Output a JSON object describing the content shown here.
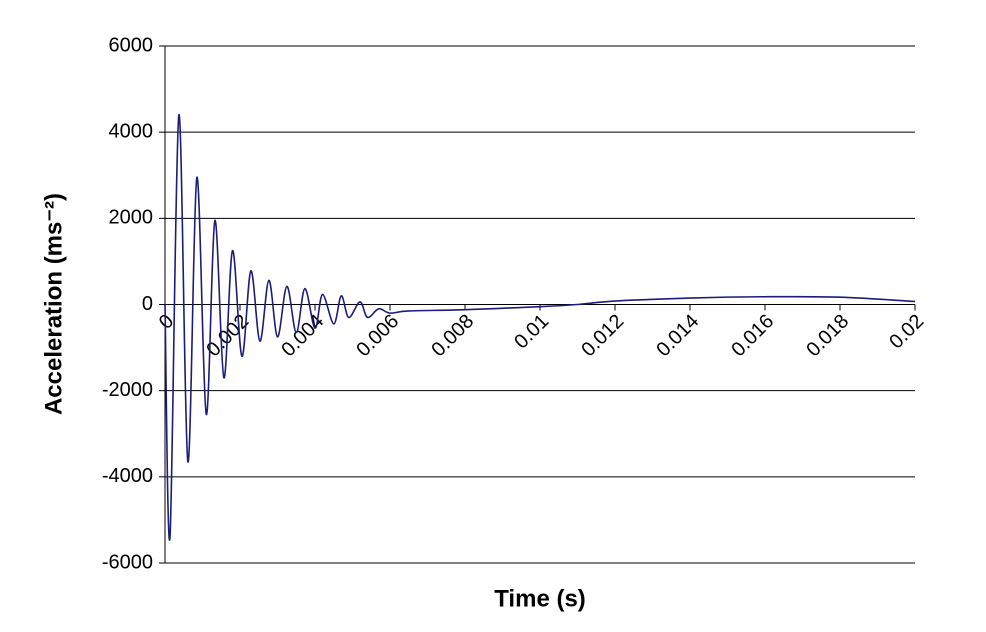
{
  "chart_data": {
    "type": "line",
    "x_label": "Time (s)",
    "y_label": "Acceleration (ms⁻²)",
    "x": [
      0,
      0.000133,
      0.00037,
      0.00061,
      0.00085,
      0.0011,
      0.00133,
      0.00157,
      0.0018,
      0.00205,
      0.00229,
      0.00253,
      0.00277,
      0.003,
      0.00325,
      0.0035,
      0.00373,
      0.004,
      0.0042,
      0.0045,
      0.0047,
      0.0049,
      0.0052,
      0.0054,
      0.0057,
      0.006,
      0.0065,
      0.008,
      0.01,
      0.011,
      0.012,
      0.014,
      0.016,
      0.018,
      0.02
    ],
    "values": [
      0,
      -5400,
      4400,
      -3650,
      2950,
      -2550,
      1950,
      -1700,
      1250,
      -1200,
      780,
      -850,
      560,
      -750,
      420,
      -650,
      370,
      -550,
      230,
      -450,
      200,
      -300,
      60,
      -300,
      -100,
      -200,
      -150,
      -120,
      -50,
      0,
      80,
      150,
      180,
      170,
      70
    ],
    "color": "#1c1c7c",
    "xlim": [
      0,
      0.02
    ],
    "xticks": [
      0,
      0.002,
      0.004,
      0.006,
      0.008,
      0.01,
      0.012,
      0.014,
      0.016,
      0.018,
      0.02
    ],
    "ylim": [
      -6000,
      6000
    ],
    "yticks": [
      -6000,
      -4000,
      -2000,
      0,
      2000,
      4000,
      6000
    ],
    "grid": true
  }
}
